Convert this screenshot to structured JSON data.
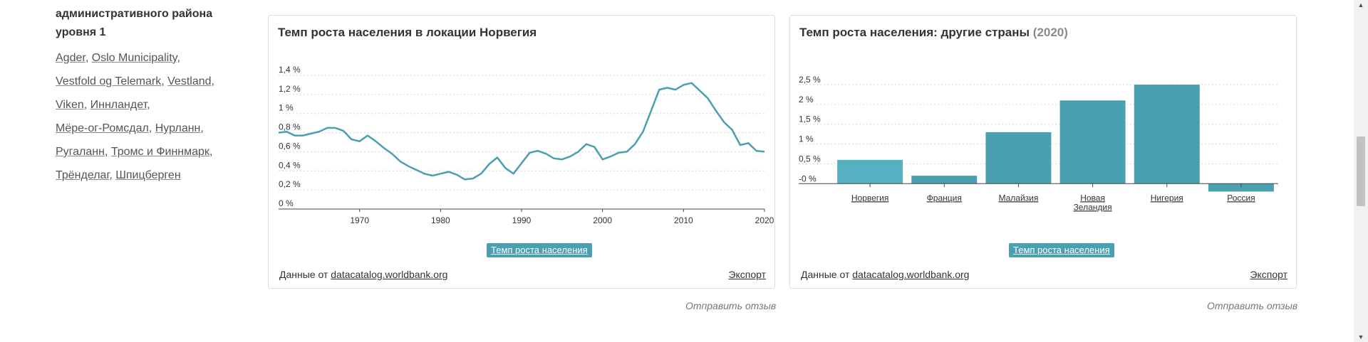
{
  "sidebar": {
    "heading_partial": "административного района",
    "heading_line1": "административного района",
    "heading_line2": "уровня 1",
    "links": [
      "Agder",
      "Oslo Municipality",
      "Vestfold og Telemark",
      "Vestland",
      "Viken",
      "Иннландет",
      "Мёре-ог-Ромсдал",
      "Нурланн",
      "Ругаланн",
      "Тромс и Финнмарк",
      "Трёнделаг",
      "Шпицберген"
    ]
  },
  "line_card": {
    "title": "Темп роста населения в локации Норвегия",
    "button_label": "Темп роста населения",
    "source_prefix": "Данные от",
    "source_link": "datacatalog.worldbank.org",
    "export_label": "Экспорт",
    "feedback_label": "Отправить отзыв",
    "line_color": "#4a9fb0"
  },
  "bar_card": {
    "title": "Темп роста населения: другие страны",
    "title_year": "(2020)",
    "button_label": "Темп роста населения",
    "source_prefix": "Данные от",
    "source_link": "datacatalog.worldbank.org",
    "export_label": "Экспорт",
    "feedback_label": "Отправить отзыв",
    "highlight_color": "#55b0c3",
    "bar_color": "#4a9fb0"
  },
  "chart_data": [
    {
      "type": "line",
      "title": "Темп роста населения в локации Норвегия",
      "xlabel": "",
      "ylabel": "",
      "xlim": [
        1960,
        2020
      ],
      "ylim": [
        0,
        1.4
      ],
      "x_ticks": [
        1970,
        1980,
        1990,
        2000,
        2010,
        2020
      ],
      "y_ticks": [
        0,
        0.2,
        0.4,
        0.6,
        0.8,
        1.0,
        1.2,
        1.4
      ],
      "y_tick_labels": [
        "0 %",
        "0,2 %",
        "0,4 %",
        "0,6 %",
        "0,8 %",
        "1 %",
        "1,2 %",
        "1,4 %"
      ],
      "grid": true,
      "series": [
        {
          "x": [
            1960,
            1961,
            1962,
            1963,
            1964,
            1965,
            1966,
            1967,
            1968,
            1969,
            1970,
            1971,
            1972,
            1973,
            1974,
            1975,
            1976,
            1977,
            1978,
            1979,
            1980,
            1981,
            1982,
            1983,
            1984,
            1985,
            1986,
            1987,
            1988,
            1989,
            1990,
            1991,
            1992,
            1993,
            1994,
            1995,
            1996,
            1997,
            1998,
            1999,
            2000,
            2001,
            2002,
            2003,
            2004,
            2005,
            2006,
            2007,
            2008,
            2009,
            2010,
            2011,
            2012,
            2013,
            2014,
            2015,
            2016,
            2017,
            2018,
            2019,
            2020
          ],
          "values": [
            0.8,
            0.81,
            0.77,
            0.77,
            0.79,
            0.81,
            0.85,
            0.85,
            0.82,
            0.73,
            0.71,
            0.77,
            0.71,
            0.64,
            0.58,
            0.5,
            0.45,
            0.41,
            0.37,
            0.35,
            0.37,
            0.39,
            0.36,
            0.31,
            0.32,
            0.37,
            0.47,
            0.54,
            0.43,
            0.37,
            0.48,
            0.59,
            0.61,
            0.58,
            0.53,
            0.52,
            0.55,
            0.6,
            0.68,
            0.65,
            0.52,
            0.55,
            0.59,
            0.6,
            0.68,
            0.81,
            1.03,
            1.25,
            1.27,
            1.25,
            1.3,
            1.32,
            1.24,
            1.16,
            1.03,
            0.91,
            0.83,
            0.67,
            0.69,
            0.61,
            0.6
          ]
        }
      ]
    },
    {
      "type": "bar",
      "title": "Темп роста населения: другие страны",
      "subtitle": "(2020)",
      "categories": [
        "Норвегия",
        "Франция",
        "Малайзия",
        "Новая Зеландия",
        "Нигерия",
        "Россия"
      ],
      "category_lines": [
        [
          "Норвегия"
        ],
        [
          "Франция"
        ],
        [
          "Малайзия"
        ],
        [
          "Новая",
          "Зеландия"
        ],
        [
          "Нигерия"
        ],
        [
          "Россия"
        ]
      ],
      "values": [
        0.6,
        0.2,
        1.3,
        2.1,
        2.5,
        -0.2
      ],
      "highlight_index": 0,
      "ylim": [
        -0.3,
        2.5
      ],
      "y_ticks": [
        0,
        0.5,
        1.0,
        1.5,
        2.0,
        2.5
      ],
      "y_tick_labels": [
        "-0 %",
        "0,5 %",
        "1 %",
        "1,5 %",
        "2 %",
        "2,5 %"
      ],
      "grid": true
    }
  ]
}
